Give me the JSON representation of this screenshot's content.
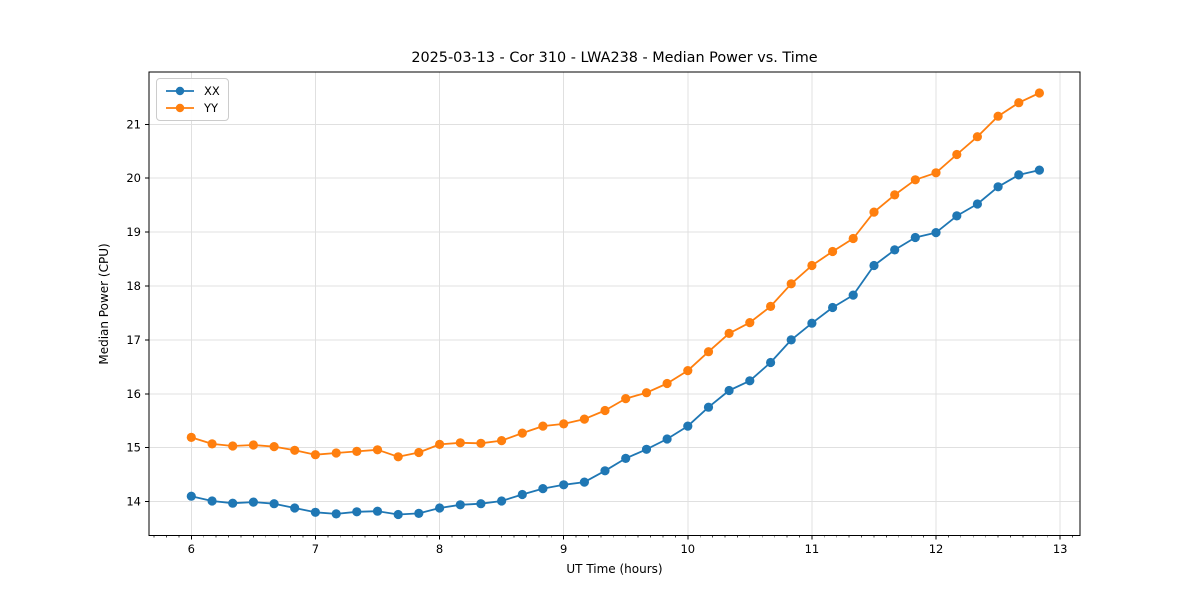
{
  "figure": {
    "background": "#ffffff",
    "spine_color": "#000000",
    "grid_color": "#e0e0e0"
  },
  "chart_data": {
    "type": "line",
    "title": "2025-03-13 - Cor 310 - LWA238 - Median Power vs. Time",
    "xlabel": "UT Time (hours)",
    "ylabel": "Median Power (CPU)",
    "xlim": [
      5.659,
      13.16
    ],
    "ylim": [
      13.37,
      21.97
    ],
    "x_ticks": [
      6,
      7,
      8,
      9,
      10,
      11,
      12,
      13
    ],
    "y_ticks": [
      14,
      15,
      16,
      17,
      18,
      19,
      20,
      21
    ],
    "x_minor_step": 0.1,
    "grid": true,
    "legend_position": "upper-left",
    "marker": "o",
    "x": [
      6.0,
      6.167,
      6.333,
      6.5,
      6.667,
      6.833,
      7.0,
      7.167,
      7.333,
      7.5,
      7.667,
      7.833,
      8.0,
      8.167,
      8.333,
      8.5,
      8.667,
      8.833,
      9.0,
      9.167,
      9.333,
      9.5,
      9.667,
      9.833,
      10.0,
      10.167,
      10.333,
      10.5,
      10.667,
      10.833,
      11.0,
      11.167,
      11.333,
      11.5,
      11.667,
      11.833,
      12.0,
      12.167,
      12.333,
      12.5,
      12.667,
      12.833
    ],
    "series": [
      {
        "name": "XX",
        "color": "#1f77b4",
        "values": [
          14.1,
          14.01,
          13.97,
          13.99,
          13.96,
          13.88,
          13.8,
          13.77,
          13.81,
          13.82,
          13.76,
          13.78,
          13.88,
          13.94,
          13.96,
          14.01,
          14.13,
          14.24,
          14.31,
          14.36,
          14.57,
          14.8,
          14.97,
          15.16,
          15.4,
          15.75,
          16.06,
          16.24,
          16.58,
          17.0,
          17.31,
          17.6,
          17.83,
          18.38,
          18.67,
          18.9,
          18.99,
          19.3,
          19.52,
          19.84,
          20.06,
          20.15
        ]
      },
      {
        "name": "YY",
        "color": "#ff7f0e",
        "values": [
          15.19,
          15.07,
          15.03,
          15.05,
          15.02,
          14.95,
          14.87,
          14.9,
          14.93,
          14.96,
          14.83,
          14.91,
          15.06,
          15.09,
          15.08,
          15.13,
          15.27,
          15.4,
          15.44,
          15.53,
          15.69,
          15.91,
          16.02,
          16.19,
          16.43,
          16.78,
          17.12,
          17.32,
          17.62,
          18.04,
          18.38,
          18.64,
          18.88,
          19.37,
          19.69,
          19.97,
          20.1,
          20.44,
          20.77,
          21.15,
          21.4,
          21.58
        ]
      }
    ]
  }
}
